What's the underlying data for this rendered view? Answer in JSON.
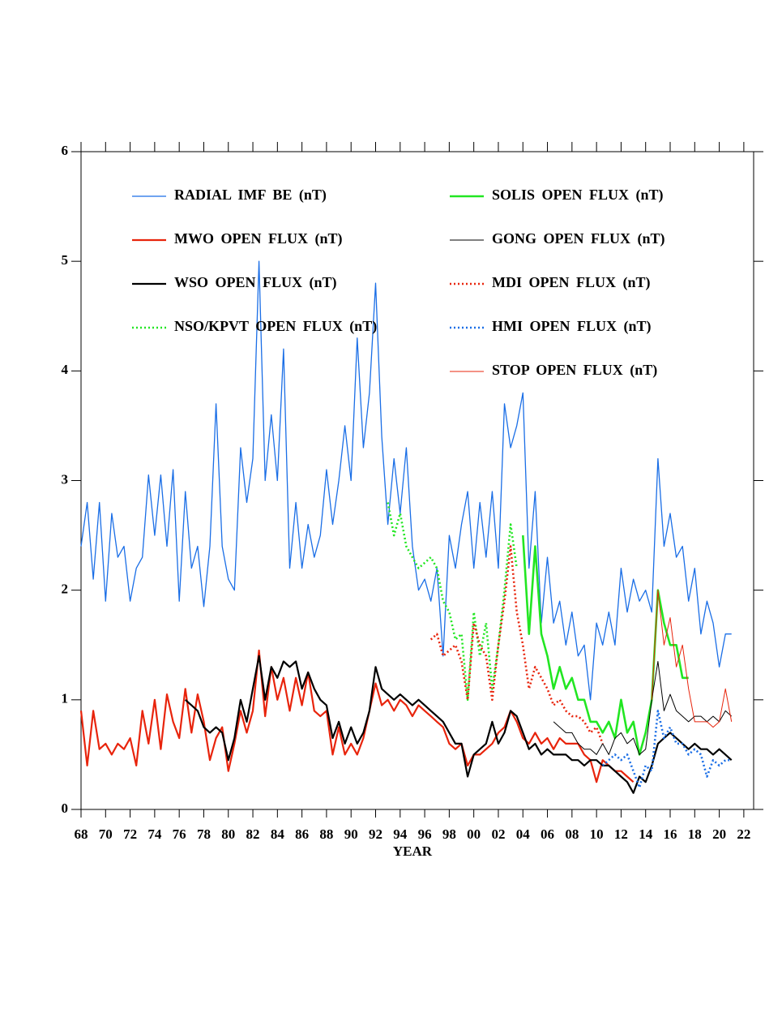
{
  "chart_data": {
    "type": "line",
    "xlabel": "YEAR",
    "xlim": [
      1968,
      2022.8
    ],
    "ylim": [
      0,
      6
    ],
    "yticks": [
      0,
      1,
      2,
      3,
      4,
      5,
      6
    ],
    "xticks": [
      {
        "value": 1968,
        "label": "68"
      },
      {
        "value": 1970,
        "label": "70"
      },
      {
        "value": 1972,
        "label": "72"
      },
      {
        "value": 1974,
        "label": "74"
      },
      {
        "value": 1976,
        "label": "76"
      },
      {
        "value": 1978,
        "label": "78"
      },
      {
        "value": 1980,
        "label": "80"
      },
      {
        "value": 1982,
        "label": "82"
      },
      {
        "value": 1984,
        "label": "84"
      },
      {
        "value": 1986,
        "label": "86"
      },
      {
        "value": 1988,
        "label": "88"
      },
      {
        "value": 1990,
        "label": "90"
      },
      {
        "value": 1992,
        "label": "92"
      },
      {
        "value": 1994,
        "label": "94"
      },
      {
        "value": 1996,
        "label": "96"
      },
      {
        "value": 1998,
        "label": "98"
      },
      {
        "value": 2000,
        "label": "00"
      },
      {
        "value": 2002,
        "label": "02"
      },
      {
        "value": 2004,
        "label": "04"
      },
      {
        "value": 2006,
        "label": "06"
      },
      {
        "value": 2008,
        "label": "08"
      },
      {
        "value": 2010,
        "label": "10"
      },
      {
        "value": 2012,
        "label": "12"
      },
      {
        "value": 2014,
        "label": "14"
      },
      {
        "value": 2016,
        "label": "16"
      },
      {
        "value": 2018,
        "label": "18"
      },
      {
        "value": 2020,
        "label": "20"
      },
      {
        "value": 2022,
        "label": "22"
      }
    ],
    "series": [
      {
        "name": "RADIAL IMF BE (nT)",
        "color": "#1a6ee6",
        "width": 1.3,
        "dotted": false,
        "x": [
          1968,
          1968.5,
          1969,
          1969.5,
          1970,
          1970.5,
          1971,
          1971.5,
          1972,
          1972.5,
          1973,
          1973.5,
          1974,
          1974.5,
          1975,
          1975.5,
          1976,
          1976.5,
          1977,
          1977.5,
          1978,
          1978.5,
          1979,
          1979.5,
          1980,
          1980.5,
          1981,
          1981.5,
          1982,
          1982.5,
          1983,
          1983.5,
          1984,
          1984.5,
          1985,
          1985.5,
          1986,
          1986.5,
          1987,
          1987.5,
          1988,
          1988.5,
          1989,
          1989.5,
          1990,
          1990.5,
          1991,
          1991.5,
          1992,
          1992.5,
          1993,
          1993.5,
          1994,
          1994.5,
          1995,
          1995.5,
          1996,
          1996.5,
          1997,
          1997.5,
          1998,
          1998.5,
          1999,
          1999.5,
          2000,
          2000.5,
          2001,
          2001.5,
          2002,
          2002.5,
          2003,
          2003.5,
          2004,
          2004.5,
          2005,
          2005.5,
          2006,
          2006.5,
          2007,
          2007.5,
          2008,
          2008.5,
          2009,
          2009.5,
          2010,
          2010.5,
          2011,
          2011.5,
          2012,
          2012.5,
          2013,
          2013.5,
          2014,
          2014.5,
          2015,
          2015.5,
          2016,
          2016.5,
          2017,
          2017.5,
          2018,
          2018.5,
          2019,
          2019.5,
          2020,
          2020.5,
          2021
        ],
        "values": [
          2.4,
          2.8,
          2.1,
          2.8,
          1.9,
          2.7,
          2.3,
          2.4,
          1.9,
          2.2,
          2.3,
          3.05,
          2.5,
          3.05,
          2.4,
          3.1,
          1.9,
          2.9,
          2.2,
          2.4,
          1.85,
          2.4,
          3.7,
          2.4,
          2.1,
          2.0,
          3.3,
          2.8,
          3.2,
          5.0,
          3.0,
          3.6,
          3.0,
          4.2,
          2.2,
          2.8,
          2.2,
          2.6,
          2.3,
          2.5,
          3.1,
          2.6,
          3.0,
          3.5,
          3.0,
          4.3,
          3.3,
          3.8,
          4.8,
          3.4,
          2.6,
          3.2,
          2.7,
          3.3,
          2.4,
          2.0,
          2.1,
          1.9,
          2.2,
          1.4,
          2.5,
          2.2,
          2.6,
          2.9,
          2.2,
          2.8,
          2.3,
          2.9,
          2.2,
          3.7,
          3.3,
          3.5,
          3.8,
          2.2,
          2.9,
          1.7,
          2.3,
          1.7,
          1.9,
          1.5,
          1.8,
          1.4,
          1.5,
          1.0,
          1.7,
          1.5,
          1.8,
          1.5,
          2.2,
          1.8,
          2.1,
          1.9,
          2.0,
          1.8,
          3.2,
          2.4,
          2.7,
          2.3,
          2.4,
          1.9,
          2.2,
          1.6,
          1.9,
          1.7,
          1.3,
          1.6,
          1.6
        ]
      },
      {
        "name": "MWO OPEN FLUX (nT)",
        "color": "#e8240c",
        "width": 2.2,
        "dotted": false,
        "x": [
          1968,
          1968.5,
          1969,
          1969.5,
          1970,
          1970.5,
          1971,
          1971.5,
          1972,
          1972.5,
          1973,
          1973.5,
          1974,
          1974.5,
          1975,
          1975.5,
          1976,
          1976.5,
          1977,
          1977.5,
          1978,
          1978.5,
          1979,
          1979.5,
          1980,
          1980.5,
          1981,
          1981.5,
          1982,
          1982.5,
          1983,
          1983.5,
          1984,
          1984.5,
          1985,
          1985.5,
          1986,
          1986.5,
          1987,
          1987.5,
          1988,
          1988.5,
          1989,
          1989.5,
          1990,
          1990.5,
          1991,
          1991.5,
          1992,
          1992.5,
          1993,
          1993.5,
          1994,
          1994.5,
          1995,
          1995.5,
          1996,
          1996.5,
          1997,
          1997.5,
          1998,
          1998.5,
          1999,
          1999.5,
          2000,
          2000.5,
          2001,
          2001.5,
          2002,
          2002.5,
          2003,
          2003.5,
          2004,
          2004.5,
          2005,
          2005.5,
          2006,
          2006.5,
          2007,
          2007.5,
          2008,
          2008.5,
          2009,
          2009.5,
          2010,
          2010.5,
          2011,
          2011.5,
          2012,
          2012.5,
          2013
        ],
        "values": [
          0.9,
          0.4,
          0.9,
          0.55,
          0.6,
          0.5,
          0.6,
          0.55,
          0.65,
          0.4,
          0.9,
          0.6,
          1.0,
          0.55,
          1.05,
          0.8,
          0.65,
          1.1,
          0.7,
          1.05,
          0.8,
          0.45,
          0.65,
          0.75,
          0.35,
          0.6,
          0.9,
          0.7,
          0.9,
          1.45,
          0.85,
          1.3,
          1.0,
          1.2,
          0.9,
          1.2,
          0.95,
          1.25,
          0.9,
          0.85,
          0.9,
          0.5,
          0.75,
          0.5,
          0.6,
          0.5,
          0.65,
          0.9,
          1.15,
          0.95,
          1.0,
          0.9,
          1.0,
          0.95,
          0.85,
          0.95,
          0.9,
          0.85,
          0.8,
          0.75,
          0.6,
          0.55,
          0.6,
          0.4,
          0.5,
          0.5,
          0.55,
          0.6,
          0.7,
          0.75,
          0.9,
          0.8,
          0.65,
          0.6,
          0.7,
          0.6,
          0.65,
          0.55,
          0.65,
          0.6,
          0.6,
          0.6,
          0.5,
          0.45,
          0.25,
          0.45,
          0.4,
          0.35,
          0.35,
          0.3,
          0.25
        ]
      },
      {
        "name": "WSO OPEN FLUX (nT)",
        "color": "#000000",
        "width": 2.2,
        "dotted": false,
        "x": [
          1976.5,
          1977,
          1977.5,
          1978,
          1978.5,
          1979,
          1979.5,
          1980,
          1980.5,
          1981,
          1981.5,
          1982,
          1982.5,
          1983,
          1983.5,
          1984,
          1984.5,
          1985,
          1985.5,
          1986,
          1986.5,
          1987,
          1987.5,
          1988,
          1988.5,
          1989,
          1989.5,
          1990,
          1990.5,
          1991,
          1991.5,
          1992,
          1992.5,
          1993,
          1993.5,
          1994,
          1994.5,
          1995,
          1995.5,
          1996,
          1996.5,
          1997,
          1997.5,
          1998,
          1998.5,
          1999,
          1999.5,
          2000,
          2000.5,
          2001,
          2001.5,
          2002,
          2002.5,
          2003,
          2003.5,
          2004,
          2004.5,
          2005,
          2005.5,
          2006,
          2006.5,
          2007,
          2007.5,
          2008,
          2008.5,
          2009,
          2009.5,
          2010,
          2010.5,
          2011,
          2011.5,
          2012,
          2012.5,
          2013,
          2013.5,
          2014,
          2014.5,
          2015,
          2015.5,
          2016,
          2016.5,
          2017,
          2017.5,
          2018,
          2018.5,
          2019,
          2019.5,
          2020,
          2020.5,
          2021
        ],
        "values": [
          1.0,
          0.95,
          0.9,
          0.75,
          0.7,
          0.75,
          0.7,
          0.45,
          0.65,
          1.0,
          0.8,
          1.1,
          1.4,
          1.0,
          1.3,
          1.2,
          1.35,
          1.3,
          1.35,
          1.1,
          1.25,
          1.1,
          1.0,
          0.95,
          0.65,
          0.8,
          0.6,
          0.75,
          0.6,
          0.7,
          0.9,
          1.3,
          1.1,
          1.05,
          1.0,
          1.05,
          1.0,
          0.95,
          1.0,
          0.95,
          0.9,
          0.85,
          0.8,
          0.7,
          0.6,
          0.6,
          0.3,
          0.5,
          0.55,
          0.6,
          0.8,
          0.6,
          0.7,
          0.9,
          0.85,
          0.7,
          0.55,
          0.6,
          0.5,
          0.55,
          0.5,
          0.5,
          0.5,
          0.45,
          0.45,
          0.4,
          0.45,
          0.45,
          0.4,
          0.4,
          0.35,
          0.3,
          0.25,
          0.15,
          0.3,
          0.25,
          0.4,
          0.6,
          0.65,
          0.7,
          0.65,
          0.6,
          0.55,
          0.6,
          0.55,
          0.55,
          0.5,
          0.55,
          0.5,
          0.45
        ]
      },
      {
        "name": "NSO/KPVT OPEN FLUX (nT)",
        "color": "#22e622",
        "width": 2.6,
        "dotted": true,
        "x": [
          1993,
          1993.5,
          1994,
          1994.5,
          1995,
          1995.5,
          1996,
          1996.5,
          1997,
          1997.5,
          1998,
          1998.5,
          1999,
          1999.5,
          2000,
          2000.5,
          2001,
          2001.5,
          2002,
          2002.5,
          2003,
          2003.5
        ],
        "values": [
          2.8,
          2.5,
          2.7,
          2.4,
          2.3,
          2.2,
          2.25,
          2.3,
          2.2,
          1.9,
          1.8,
          1.55,
          1.6,
          1.0,
          1.8,
          1.4,
          1.7,
          1.1,
          1.5,
          2.0,
          2.6,
          2.2
        ]
      },
      {
        "name": "SOLIS OPEN FLUX (nT)",
        "color": "#22e622",
        "width": 2.6,
        "dotted": false,
        "x": [
          2004,
          2004.5,
          2005,
          2005.5,
          2006,
          2006.5,
          2007,
          2007.5,
          2008,
          2008.5,
          2009,
          2009.5,
          2010,
          2010.5,
          2011,
          2011.5,
          2012,
          2012.5,
          2013,
          2013.5,
          2014,
          2014.5,
          2015,
          2015.5,
          2016,
          2016.5,
          2017,
          2017.5
        ],
        "values": [
          2.5,
          1.6,
          2.4,
          1.6,
          1.4,
          1.1,
          1.3,
          1.1,
          1.2,
          1.0,
          1.0,
          0.8,
          0.8,
          0.7,
          0.8,
          0.65,
          1.0,
          0.7,
          0.8,
          0.5,
          0.7,
          1.0,
          2.0,
          1.7,
          1.5,
          1.5,
          1.2,
          1.2
        ]
      },
      {
        "name": "GONG OPEN FLUX (nT)",
        "color": "#000000",
        "width": 1,
        "dotted": false,
        "x": [
          2006.5,
          2007,
          2007.5,
          2008,
          2008.5,
          2009,
          2009.5,
          2010,
          2010.5,
          2011,
          2011.5,
          2012,
          2012.5,
          2013,
          2013.5,
          2014,
          2014.5,
          2015,
          2015.5,
          2016,
          2016.5,
          2017,
          2017.5,
          2018,
          2018.5,
          2019,
          2019.5,
          2020,
          2020.5,
          2021
        ],
        "values": [
          0.8,
          0.75,
          0.7,
          0.7,
          0.6,
          0.55,
          0.55,
          0.5,
          0.6,
          0.5,
          0.65,
          0.7,
          0.6,
          0.65,
          0.5,
          0.55,
          1.0,
          1.35,
          0.9,
          1.05,
          0.9,
          0.85,
          0.8,
          0.85,
          0.85,
          0.8,
          0.85,
          0.8,
          0.9,
          0.85
        ]
      },
      {
        "name": "MDI OPEN FLUX (nT)",
        "color": "#e8240c",
        "width": 2.6,
        "dotted": true,
        "x": [
          1996.5,
          1997,
          1997.5,
          1998,
          1998.5,
          1999,
          1999.5,
          2000,
          2000.5,
          2001,
          2001.5,
          2002,
          2002.5,
          2003,
          2003.5,
          2004,
          2004.5,
          2005,
          2005.5,
          2006,
          2006.5,
          2007,
          2007.5,
          2008,
          2008.5,
          2009,
          2009.5,
          2010,
          2010.5
        ],
        "values": [
          1.55,
          1.6,
          1.4,
          1.45,
          1.5,
          1.35,
          1.0,
          1.7,
          1.5,
          1.4,
          1.0,
          1.5,
          1.9,
          2.4,
          1.8,
          1.5,
          1.1,
          1.3,
          1.2,
          1.1,
          0.95,
          1.0,
          0.9,
          0.85,
          0.85,
          0.8,
          0.7,
          0.75,
          0.6
        ]
      },
      {
        "name": "HMI OPEN FLUX (nT)",
        "color": "#1a6ee6",
        "width": 2.6,
        "dotted": true,
        "x": [
          2010.5,
          2011,
          2011.5,
          2012,
          2012.5,
          2013,
          2013.5,
          2014,
          2014.5,
          2015,
          2015.5,
          2016,
          2016.5,
          2017,
          2017.5,
          2018,
          2018.5,
          2019,
          2019.5,
          2020,
          2020.5,
          2021
        ],
        "values": [
          0.4,
          0.45,
          0.5,
          0.45,
          0.5,
          0.35,
          0.2,
          0.4,
          0.35,
          0.9,
          0.65,
          0.75,
          0.6,
          0.6,
          0.5,
          0.55,
          0.5,
          0.3,
          0.45,
          0.4,
          0.45,
          0.45
        ]
      },
      {
        "name": "STOP OPEN FLUX (nT)",
        "color": "#e8240c",
        "width": 1,
        "dotted": false,
        "x": [
          2014.5,
          2015,
          2015.5,
          2016,
          2016.5,
          2017,
          2017.5,
          2018,
          2018.5,
          2019,
          2019.5,
          2020,
          2020.5,
          2021
        ],
        "values": [
          1.0,
          2.0,
          1.5,
          1.75,
          1.3,
          1.5,
          1.1,
          0.8,
          0.8,
          0.8,
          0.75,
          0.8,
          1.1,
          0.8
        ]
      }
    ]
  }
}
